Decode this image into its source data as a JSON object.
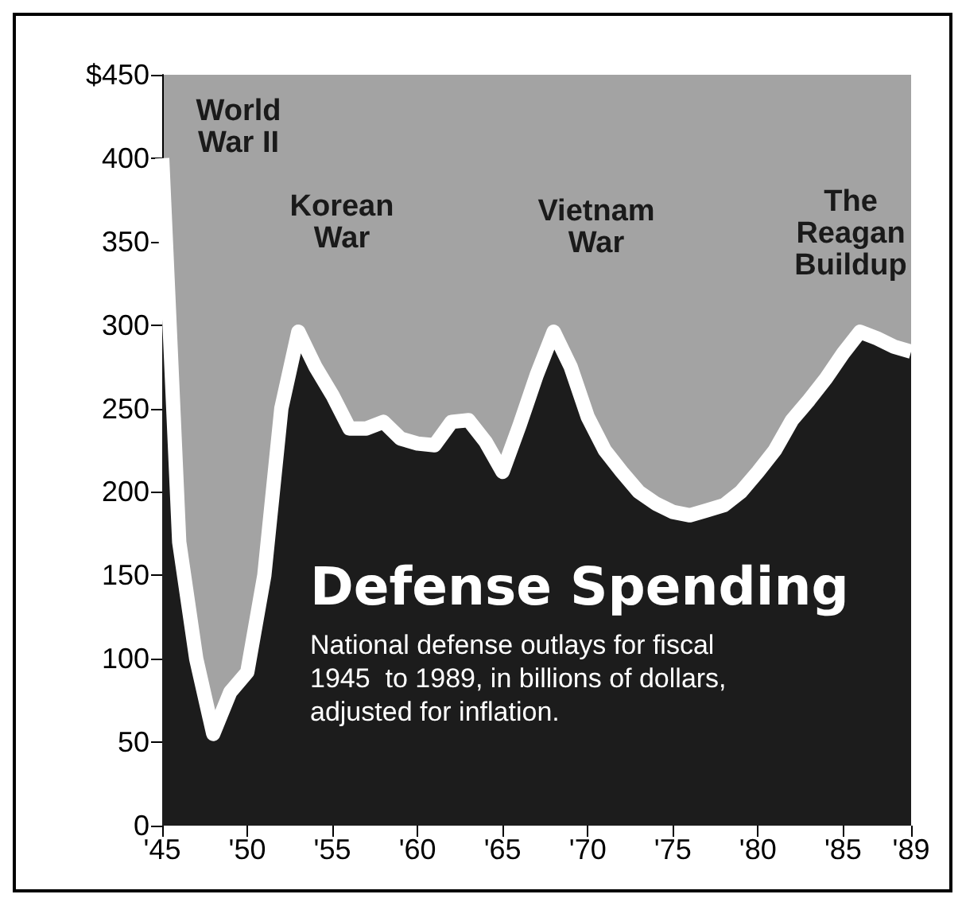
{
  "chart_data": {
    "type": "area",
    "title": "Defense Spending",
    "subtitle": "National defense outlays for fiscal\n1945  to 1989, in billions of dollars,\nadjusted for inflation.",
    "x": [
      1945,
      1946,
      1947,
      1948,
      1949,
      1950,
      1951,
      1952,
      1953,
      1954,
      1955,
      1956,
      1957,
      1958,
      1959,
      1960,
      1961,
      1962,
      1963,
      1964,
      1965,
      1966,
      1967,
      1968,
      1969,
      1970,
      1971,
      1972,
      1973,
      1974,
      1975,
      1976,
      1977,
      1978,
      1979,
      1980,
      1981,
      1982,
      1983,
      1984,
      1985,
      1986,
      1987,
      1988,
      1989
    ],
    "series": [
      {
        "color": "#1c1c1c",
        "values": [
          400,
          170,
          100,
          55,
          80,
          92,
          150,
          250,
          296,
          275,
          258,
          238,
          238,
          242,
          232,
          229,
          228,
          242,
          243,
          230,
          212,
          240,
          270,
          296,
          275,
          245,
          225,
          212,
          200,
          193,
          188,
          186,
          189,
          192,
          200,
          212,
          225,
          243,
          255,
          268,
          283,
          296,
          292,
          287,
          284
        ]
      }
    ],
    "xlim": [
      1945,
      1989
    ],
    "xticks": [
      {
        "value": 1945,
        "label": "'45"
      },
      {
        "value": 1950,
        "label": "'50"
      },
      {
        "value": 1955,
        "label": "'55"
      },
      {
        "value": 1960,
        "label": "'60"
      },
      {
        "value": 1965,
        "label": "'65"
      },
      {
        "value": 1970,
        "label": "'70"
      },
      {
        "value": 1975,
        "label": "'75"
      },
      {
        "value": 1980,
        "label": "'80"
      },
      {
        "value": 1985,
        "label": "'85"
      },
      {
        "value": 1989,
        "label": "'89"
      }
    ],
    "ylim": [
      0,
      450
    ],
    "yticks": [
      0,
      50,
      100,
      150,
      200,
      250,
      300,
      350,
      400,
      {
        "value": 450,
        "label": "$450"
      }
    ],
    "annotations": [
      "World\nWar II",
      "Korean\nWar",
      "Vietnam\nWar",
      "The\nReagan\nBuildup"
    ],
    "grid": false
  }
}
